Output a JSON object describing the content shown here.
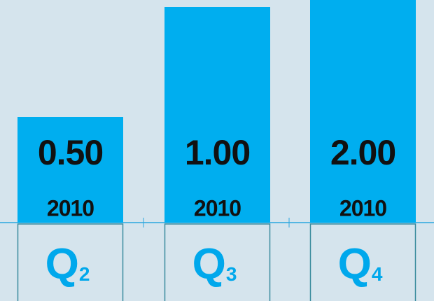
{
  "panels": [
    {
      "value": "0.50",
      "year": "2010",
      "quarter": "Q",
      "number": "2"
    },
    {
      "value": "1.00",
      "year": "2010",
      "quarter": "Q",
      "number": "3"
    },
    {
      "value": "2.00",
      "year": "2010",
      "quarter": "Q",
      "number": "4"
    }
  ]
}
